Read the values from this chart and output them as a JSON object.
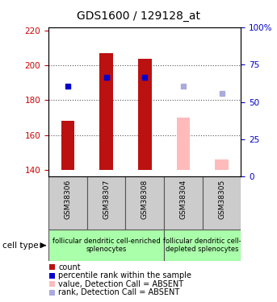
{
  "title": "GDS1600 / 129128_at",
  "samples": [
    "GSM38306",
    "GSM38307",
    "GSM38308",
    "GSM38304",
    "GSM38305"
  ],
  "ylim_left": [
    136,
    222
  ],
  "ylim_right": [
    0,
    100
  ],
  "yticks_left": [
    140,
    160,
    180,
    200,
    220
  ],
  "yticks_right": [
    0,
    25,
    50,
    75,
    100
  ],
  "bar_bottom": 140,
  "count_values": [
    168,
    207,
    204,
    null,
    null
  ],
  "count_color": "#bb1111",
  "absent_count_values": [
    null,
    null,
    null,
    170,
    146
  ],
  "absent_count_color": "#ffbbbb",
  "rank_present_values": [
    188,
    193,
    193,
    null,
    null
  ],
  "rank_absent_values": [
    null,
    null,
    null,
    188,
    184
  ],
  "rank_present_color": "#0000cc",
  "rank_absent_color": "#aaaadd",
  "group1_samples": [
    0,
    1,
    2
  ],
  "group1_label": "follicular dendritic cell-enriched\nsplenocytes",
  "group2_samples": [
    3,
    4
  ],
  "group2_label": "follicular dendritic cell-\ndepleted splenocytes",
  "group_color": "#aaffaa",
  "sample_box_color": "#cccccc",
  "legend_items": [
    {
      "label": "count",
      "color": "#bb1111"
    },
    {
      "label": "percentile rank within the sample",
      "color": "#0000cc"
    },
    {
      "label": "value, Detection Call = ABSENT",
      "color": "#ffbbbb"
    },
    {
      "label": "rank, Detection Call = ABSENT",
      "color": "#aaaadd"
    }
  ],
  "bar_width": 0.35,
  "rank_marker_size": 5,
  "left_tick_color": "#cc0000",
  "right_tick_color": "#0000cc",
  "title_fontsize": 10,
  "tick_fontsize": 7.5,
  "sample_fontsize": 6.5,
  "group_fontsize": 6,
  "legend_fontsize": 7,
  "legend_marker_size": 7
}
